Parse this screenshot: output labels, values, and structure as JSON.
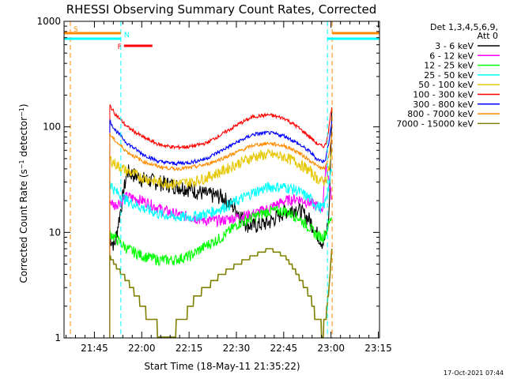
{
  "chart_data": {
    "type": "line",
    "title": "RHESSI Observing Summary Count Rates, Corrected",
    "xlabel": "Start Time (18-May-11 21:35:22)",
    "ylabel": "Corrected Count Rate (s⁻¹ detector⁻¹)",
    "yscale": "log",
    "ylim": [
      1,
      1000
    ],
    "xlim_minutes_after_start": [
      0,
      100
    ],
    "x_ticks": [
      "21:45",
      "22:00",
      "22:15",
      "22:30",
      "22:45",
      "23:00",
      "23:15"
    ],
    "y_ticks": [
      "1",
      "10",
      "100",
      "1000"
    ],
    "legend_header": [
      "Det 1,3,4,5,6,9,",
      "Att 0"
    ],
    "legend_position": "top-right",
    "footer": "17-Oct-2021 07:44",
    "flags": [
      {
        "label": "S",
        "color": "#ff8c00",
        "t_start": 0,
        "t_end": 18
      },
      {
        "label": "N",
        "color": "#00ffff",
        "t_start": 0,
        "t_end": 18
      },
      {
        "label": "F",
        "color": "#ff0000",
        "t_start": 19,
        "t_end": 28
      }
    ],
    "vertical_markers": [
      {
        "t": 2,
        "color": "#ff8c00"
      },
      {
        "t": 18,
        "color": "#00ffff"
      },
      {
        "t": 83.5,
        "color": "#00ffff"
      },
      {
        "t": 85,
        "color": "#ff8c00"
      },
      {
        "t": 100,
        "color": "#ff8c00"
      }
    ],
    "series": [
      {
        "name": "3 - 6 keV",
        "color": "#000000",
        "t": [
          14.5,
          16,
          20,
          25,
          30,
          40,
          45,
          50,
          55,
          58,
          60,
          65,
          70,
          74,
          78,
          80,
          82,
          83,
          84,
          85
        ],
        "values": [
          9,
          7.5,
          38,
          32,
          30,
          26,
          23,
          22,
          16,
          12,
          11.5,
          12.5,
          16,
          17,
          13,
          10,
          8,
          9,
          15,
          170
        ]
      },
      {
        "name": "6 - 12 keV",
        "color": "#ff00ff",
        "t": [
          14.5,
          16,
          20,
          25,
          30,
          35,
          40,
          45,
          50,
          55,
          60,
          65,
          70,
          74,
          78,
          80,
          82,
          83,
          84,
          85
        ],
        "values": [
          20,
          18,
          22,
          20,
          17,
          15,
          14,
          13,
          13,
          14,
          15,
          17,
          20,
          21,
          19,
          18,
          17,
          45,
          30,
          20
        ]
      },
      {
        "name": "12 - 25 keV",
        "color": "#00ff00",
        "t": [
          14.5,
          16,
          20,
          25,
          30,
          35,
          40,
          45,
          50,
          55,
          60,
          65,
          70,
          74,
          78,
          80,
          82,
          83,
          84,
          85
        ],
        "values": [
          10,
          9,
          7,
          6,
          5.5,
          5.5,
          6,
          7.5,
          9,
          12,
          14,
          16,
          16,
          14,
          11,
          9.5,
          9,
          10,
          12,
          15
        ]
      },
      {
        "name": "25 - 50 keV",
        "color": "#00ffff",
        "t": [
          14.5,
          16,
          20,
          25,
          30,
          35,
          40,
          45,
          50,
          55,
          60,
          65,
          70,
          74,
          78,
          80,
          82,
          83,
          84,
          85
        ],
        "values": [
          30,
          25,
          20,
          17,
          15,
          14,
          14,
          15,
          17,
          20,
          24,
          27,
          27,
          25,
          21,
          18,
          17,
          20,
          30,
          40
        ]
      },
      {
        "name": "50 - 100 keV",
        "color": "#e6c800",
        "t": [
          14.5,
          16,
          20,
          25,
          30,
          35,
          40,
          45,
          50,
          55,
          60,
          65,
          70,
          74,
          78,
          80,
          82,
          83,
          84,
          85
        ],
        "values": [
          50,
          45,
          38,
          33,
          30,
          29,
          30,
          33,
          38,
          45,
          52,
          55,
          52,
          46,
          38,
          33,
          30,
          32,
          40,
          60
        ]
      },
      {
        "name": "100 - 300 keV",
        "color": "#ff0000",
        "t": [
          14.5,
          16,
          20,
          25,
          30,
          35,
          40,
          45,
          50,
          55,
          60,
          65,
          70,
          74,
          78,
          80,
          82,
          83,
          84,
          85
        ],
        "values": [
          160,
          135,
          100,
          80,
          68,
          64,
          65,
          70,
          85,
          105,
          125,
          130,
          120,
          100,
          80,
          70,
          65,
          68,
          100,
          170
        ]
      },
      {
        "name": "300 - 800 keV",
        "color": "#0000ff",
        "t": [
          14.5,
          16,
          20,
          25,
          30,
          35,
          40,
          45,
          50,
          55,
          60,
          65,
          70,
          74,
          78,
          80,
          82,
          83,
          84,
          85
        ],
        "values": [
          115,
          95,
          70,
          55,
          47,
          45,
          46,
          50,
          60,
          72,
          85,
          88,
          82,
          70,
          58,
          50,
          47,
          50,
          75,
          120
        ]
      },
      {
        "name": "800 - 7000 keV",
        "color": "#ff8c00",
        "t": [
          14.5,
          16,
          20,
          25,
          30,
          35,
          40,
          45,
          50,
          55,
          60,
          65,
          70,
          74,
          78,
          80,
          82,
          83,
          84,
          85
        ],
        "values": [
          85,
          75,
          58,
          47,
          42,
          40,
          41,
          44,
          50,
          58,
          67,
          70,
          66,
          58,
          48,
          43,
          40,
          42,
          55,
          90
        ]
      },
      {
        "name": "7000 - 15000 keV",
        "color": "#808000",
        "t": [
          14.5,
          16,
          20,
          25,
          27,
          30,
          35,
          38,
          40,
          42,
          45,
          50,
          55,
          60,
          65,
          70,
          74,
          78,
          80,
          82,
          83,
          84,
          85
        ],
        "values": [
          6,
          5,
          3.5,
          2,
          1.5,
          1.2,
          1.2,
          1.5,
          2,
          2.5,
          3,
          4,
          5,
          6,
          7,
          6,
          4,
          2.5,
          1.5,
          1.2,
          1.5,
          3,
          8
        ]
      }
    ]
  }
}
